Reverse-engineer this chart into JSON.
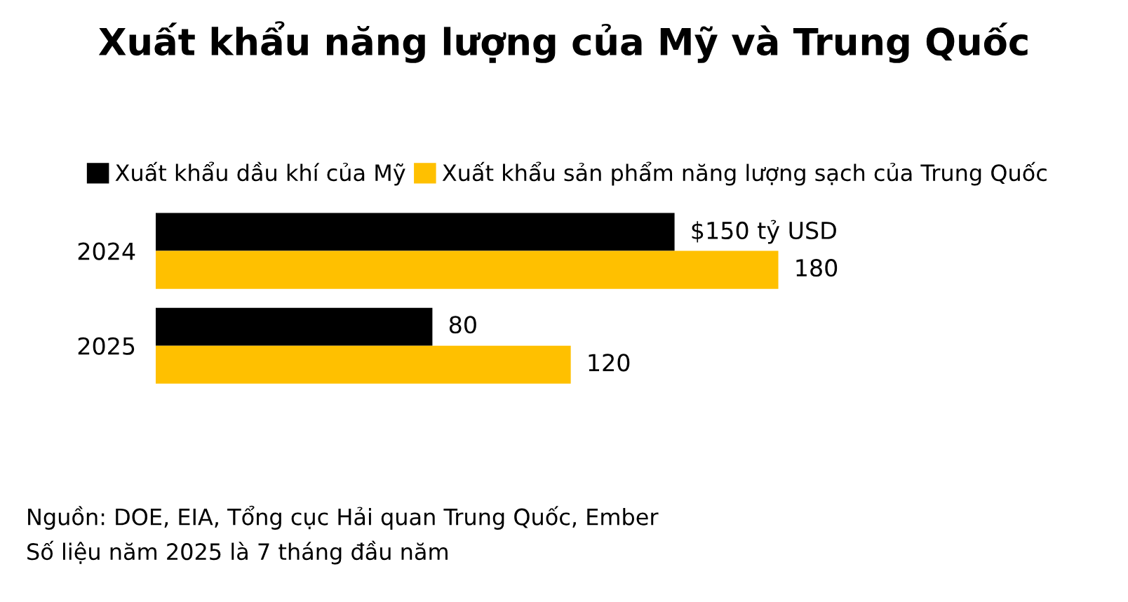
{
  "chart_data": {
    "type": "bar",
    "orientation": "horizontal",
    "title": "Xuất khẩu năng lượng của Mỹ và Trung Quốc",
    "categories": [
      "2024",
      "2025"
    ],
    "series": [
      {
        "name": "Xuất khẩu dầu khí của Mỹ",
        "color": "#000000",
        "values": [
          150,
          80
        ],
        "value_labels": [
          "$150 tỷ USD",
          "80"
        ]
      },
      {
        "name": "Xuất khẩu sản phẩm năng lượng sạch của Trung Quốc",
        "color": "#ffc000",
        "values": [
          180,
          120
        ],
        "value_labels": [
          "180",
          "120"
        ]
      }
    ],
    "legend": "top",
    "grid": false,
    "annotations": [
      "Nguồn: DOE, EIA, Tổng cục Hải quan Trung Quốc, Ember",
      "Số liệu năm 2025 là 7 tháng đầu năm"
    ]
  }
}
